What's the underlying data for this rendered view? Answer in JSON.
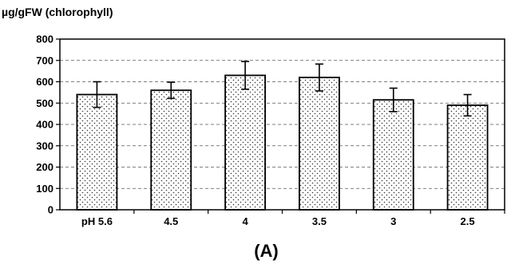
{
  "chart_data": {
    "type": "bar",
    "ylabel": "µg/gFW (chlorophyll)",
    "panel_label": "(A)",
    "categories": [
      "pH 5.6",
      "4.5",
      "4",
      "3.5",
      "3",
      "2.5"
    ],
    "values": [
      540,
      560,
      630,
      620,
      515,
      490
    ],
    "errors": [
      60,
      38,
      65,
      63,
      55,
      50
    ],
    "ylim": [
      0,
      800
    ],
    "yticks": [
      0,
      100,
      200,
      300,
      400,
      500,
      600,
      700,
      800
    ],
    "grid": true,
    "legend": "none"
  }
}
